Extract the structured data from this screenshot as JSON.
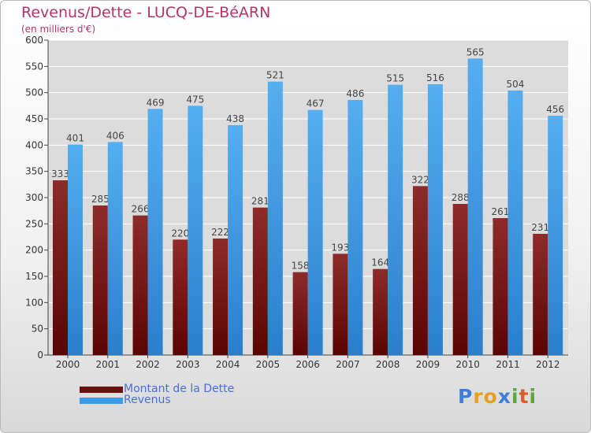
{
  "chart_data": {
    "type": "bar",
    "title": "Revenus/Dette - LUCQ-DE-BéARN",
    "subtitle": "(en milliers d'€)",
    "categories": [
      "2000",
      "2001",
      "2002",
      "2003",
      "2004",
      "2005",
      "2006",
      "2007",
      "2008",
      "2009",
      "2010",
      "2011",
      "2012"
    ],
    "series": [
      {
        "name": "Montant de la Dette",
        "color": "#7a1c1c",
        "values": [
          333,
          285,
          266,
          220,
          222,
          281,
          158,
          193,
          164,
          322,
          288,
          261,
          231
        ]
      },
      {
        "name": "Revenus",
        "color": "#3d9be6",
        "values": [
          401,
          406,
          469,
          475,
          438,
          521,
          467,
          486,
          515,
          516,
          565,
          504,
          456
        ]
      }
    ],
    "yticks": [
      0,
      50,
      100,
      150,
      200,
      250,
      300,
      350,
      400,
      450,
      500,
      550,
      600
    ],
    "ylim": [
      0,
      600
    ],
    "xlabel": "",
    "ylabel": "",
    "grid": true,
    "legend_position": "bottom-left"
  },
  "legend": {
    "debt_label": "Montant de la Dette",
    "revenue_label": "Revenus"
  },
  "logo": {
    "letters": [
      "P",
      "r",
      "o",
      "x",
      "i",
      "t",
      "i"
    ],
    "colors": [
      "#3d7fd8",
      "#e8a020",
      "#e8a020",
      "#3d7fd8",
      "#5aa83a",
      "#e05a2a",
      "#5aa83a"
    ]
  }
}
